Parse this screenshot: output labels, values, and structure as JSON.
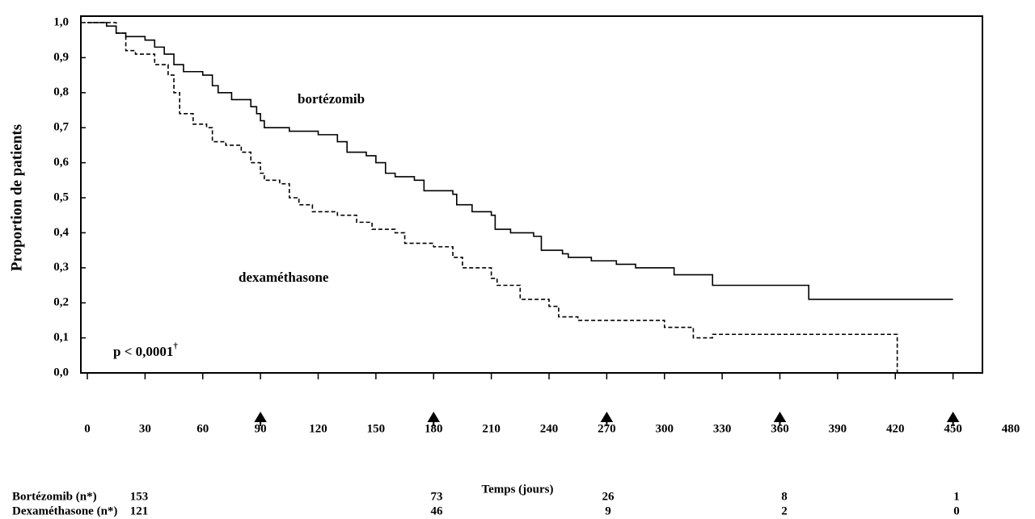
{
  "chart_data": {
    "type": "step",
    "ylabel": "Proportion de patients",
    "xlabel": "Temps (jours)",
    "xlim": [
      0,
      480
    ],
    "ylim": [
      0,
      1
    ],
    "xticks": [
      0,
      30,
      60,
      90,
      120,
      150,
      180,
      210,
      240,
      270,
      300,
      330,
      360,
      390,
      420,
      450,
      480
    ],
    "yticks": [
      {
        "value": 0,
        "label": "0,0"
      },
      {
        "value": 0.1,
        "label": "0,1"
      },
      {
        "value": 0.2,
        "label": "0,2"
      },
      {
        "value": 0.3,
        "label": "0,3"
      },
      {
        "value": 0.4,
        "label": "0,4"
      },
      {
        "value": 0.5,
        "label": "0,5"
      },
      {
        "value": 0.6,
        "label": "0,6"
      },
      {
        "value": 0.7,
        "label": "0,7"
      },
      {
        "value": 0.8,
        "label": "0,8"
      },
      {
        "value": 0.9,
        "label": "0,9"
      },
      {
        "value": 1,
        "label": "1,0"
      }
    ],
    "annotation": {
      "text": "p < 0,0001",
      "mark": "†"
    },
    "series": [
      {
        "name": "bortézomib",
        "color": "#000000",
        "dash": false,
        "x": [
          0,
          10,
          15,
          20,
          30,
          35,
          40,
          45,
          50,
          60,
          65,
          68,
          75,
          85,
          88,
          90,
          92,
          105,
          120,
          130,
          135,
          145,
          150,
          155,
          160,
          170,
          175,
          190,
          192,
          200,
          210,
          212,
          220,
          232,
          236,
          247,
          250,
          262,
          275,
          285,
          305,
          325,
          375,
          450
        ],
        "values": [
          1.0,
          0.99,
          0.97,
          0.96,
          0.95,
          0.93,
          0.91,
          0.88,
          0.86,
          0.85,
          0.82,
          0.8,
          0.78,
          0.76,
          0.74,
          0.72,
          0.7,
          0.69,
          0.68,
          0.66,
          0.63,
          0.62,
          0.6,
          0.57,
          0.56,
          0.55,
          0.52,
          0.51,
          0.48,
          0.46,
          0.45,
          0.41,
          0.4,
          0.39,
          0.35,
          0.34,
          0.33,
          0.32,
          0.31,
          0.3,
          0.28,
          0.25,
          0.21,
          0.21
        ]
      },
      {
        "name": "dexaméthasone",
        "color": "#000000",
        "dash": true,
        "x": [
          0,
          15,
          20,
          25,
          35,
          42,
          45,
          48,
          55,
          62,
          65,
          72,
          80,
          85,
          90,
          92,
          100,
          105,
          110,
          117,
          130,
          140,
          148,
          160,
          165,
          180,
          190,
          195,
          210,
          213,
          225,
          240,
          245,
          255,
          300,
          315,
          325,
          421,
          421
        ],
        "values": [
          1.0,
          0.97,
          0.92,
          0.91,
          0.88,
          0.85,
          0.8,
          0.74,
          0.71,
          0.7,
          0.66,
          0.65,
          0.63,
          0.6,
          0.57,
          0.55,
          0.54,
          0.5,
          0.48,
          0.46,
          0.45,
          0.43,
          0.41,
          0.4,
          0.37,
          0.36,
          0.33,
          0.3,
          0.27,
          0.25,
          0.21,
          0.19,
          0.16,
          0.15,
          0.13,
          0.1,
          0.11,
          0.11,
          0.0
        ]
      }
    ],
    "risk_table": {
      "times": [
        90,
        180,
        270,
        360,
        450
      ],
      "rows": [
        {
          "label": "Bortézomib (n*)",
          "values": [
            153,
            73,
            26,
            8,
            1
          ]
        },
        {
          "label": "Dexaméthasone (n*)",
          "values": [
            121,
            46,
            9,
            2,
            0
          ]
        }
      ]
    }
  }
}
